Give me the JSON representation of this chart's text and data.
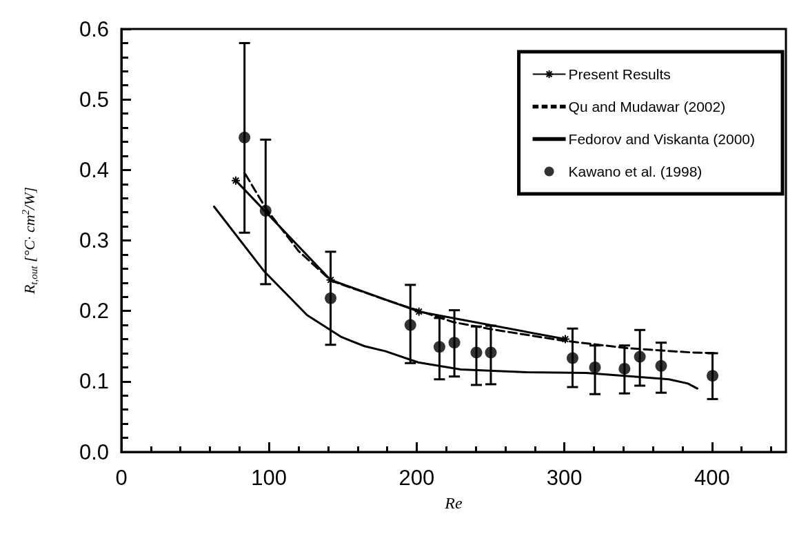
{
  "chart_data": {
    "type": "line",
    "xlabel": "Re",
    "ylabel": "R$_{t,out}$ [°C· cm$^{2}$/W]",
    "xlim": [
      0,
      450
    ],
    "xticks": [
      0,
      100,
      200,
      300,
      400
    ],
    "ylim": [
      0,
      0.6
    ],
    "yticks": [
      {
        "value": 0,
        "label": "0.0"
      },
      0.1,
      0.2,
      0.3,
      0.4,
      0.5,
      0.6
    ],
    "legend": "top right",
    "series": [
      {
        "name": "Present Results",
        "color": "#000000",
        "marker": "cross",
        "line_style": "solid",
        "x": [
          77.5,
          141.7,
          201.5,
          300.6
        ],
        "values": [
          0.385,
          0.244,
          0.199,
          0.16
        ]
      },
      {
        "name": "Qu and Mudawar (2002)",
        "color": "#000000",
        "marker": "none",
        "line_style": "dashed",
        "x": [
          84,
          98,
          120,
          142,
          178.6,
          225,
          250.7,
          298.7,
          343.6,
          386.8,
          402.8
        ],
        "values": [
          0.394,
          0.345,
          0.285,
          0.243,
          0.216,
          0.184,
          0.174,
          0.158,
          0.147,
          0.141,
          0.14
        ]
      },
      {
        "name": "Fedorov and Viskanta (2000)",
        "color": "#000000",
        "marker": "none",
        "line_style": "solid",
        "x": [
          62.8,
          96.4,
          125.8,
          149,
          164.7,
          178.6,
          201,
          229.9,
          274.7,
          314.7,
          346.8,
          370.8,
          383.6,
          390
        ],
        "values": [
          0.348,
          0.257,
          0.194,
          0.163,
          0.15,
          0.143,
          0.127,
          0.117,
          0.113,
          0.112,
          0.107,
          0.103,
          0.097,
          0.09
        ]
      },
      {
        "name": "Kawano et al. (1998)",
        "type": "scatter",
        "color": "#000000",
        "marker": "circle",
        "x": [
          83.4,
          97.7,
          141.7,
          195.7,
          215.4,
          225.5,
          240.4,
          250.2,
          305.5,
          320.7,
          340.7,
          351.1,
          365.5,
          400.3
        ],
        "values": [
          0.446,
          0.342,
          0.218,
          0.18,
          0.149,
          0.155,
          0.141,
          0.141,
          0.133,
          0.12,
          0.118,
          0.135,
          0.122,
          0.108
        ],
        "errors": [
          [
            0.311,
            0.58
          ],
          [
            0.238,
            0.443
          ],
          [
            0.152,
            0.284
          ],
          [
            0.126,
            0.237
          ],
          [
            0.103,
            0.19
          ],
          [
            0.107,
            0.201
          ],
          [
            0.095,
            0.178
          ],
          [
            0.096,
            0.179
          ],
          [
            0.092,
            0.175
          ],
          [
            0.082,
            0.151
          ],
          [
            0.083,
            0.151
          ],
          [
            0.094,
            0.173
          ],
          [
            0.084,
            0.155
          ],
          [
            0.075,
            0.14
          ]
        ]
      }
    ]
  }
}
